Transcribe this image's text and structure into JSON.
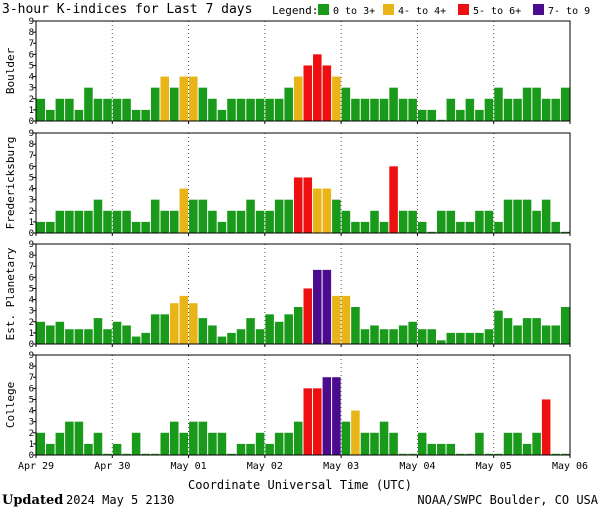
{
  "chart_data": {
    "type": "bar",
    "title": "3-hour K-indices for Last 7 days",
    "legend": {
      "label": "Legend:",
      "placement": "top-right",
      "entries": [
        {
          "text": "0 to 3+",
          "color": "#1a9a1a"
        },
        {
          "text": "4- to 4+",
          "color": "#e9b418"
        },
        {
          "text": "5- to 6+",
          "color": "#ee1010"
        },
        {
          "text": "7- to 9",
          "color": "#4a0b8f"
        }
      ]
    },
    "xlabel": "Coordinate Universal Time (UTC)",
    "x_ticks": [
      "Apr 29",
      "Apr 30",
      "May 01",
      "May 02",
      "May 03",
      "May 04",
      "May 05",
      "May 06"
    ],
    "bins_per_day": 8,
    "ylim": [
      0,
      9
    ],
    "y_ticks": [
      "0",
      "1",
      "2",
      "3",
      "4",
      "5",
      "6",
      "7",
      "8",
      "9"
    ],
    "grid": true,
    "panels": [
      {
        "name": "Boulder",
        "values": [
          2,
          1,
          2,
          2,
          1,
          3,
          2,
          2,
          2,
          2,
          1,
          1,
          3,
          4,
          3,
          4,
          4,
          3,
          2,
          1,
          2,
          2,
          2,
          2,
          2,
          2,
          3,
          4,
          5,
          6,
          5,
          4,
          3,
          2,
          2,
          2,
          2,
          3,
          2,
          2,
          1,
          1,
          0,
          2,
          1,
          2,
          1,
          2,
          3,
          2,
          2,
          3,
          3,
          2,
          2,
          3,
          0
        ]
      },
      {
        "name": "Fredericksburg",
        "values": [
          1,
          1,
          2,
          2,
          2,
          2,
          3,
          2,
          2,
          2,
          1,
          1,
          3,
          2,
          2,
          4,
          3,
          3,
          2,
          1,
          2,
          2,
          3,
          2,
          2,
          3,
          3,
          5,
          5,
          4,
          4,
          3,
          2,
          1,
          1,
          2,
          1,
          6,
          2,
          2,
          1,
          0,
          2,
          2,
          1,
          1,
          2,
          2,
          1,
          3,
          3,
          3,
          2,
          3,
          1,
          0
        ]
      },
      {
        "name": "Est. Planetary",
        "values": [
          2,
          1.67,
          2,
          1.33,
          1.33,
          1.33,
          2.33,
          1.33,
          2,
          1.67,
          0.67,
          1,
          2.67,
          2.67,
          3.67,
          4.33,
          3.67,
          2.33,
          1.67,
          0.67,
          1,
          1.33,
          2.33,
          1.33,
          2.67,
          2,
          2.67,
          3.33,
          5,
          6.67,
          6.67,
          4.33,
          4.33,
          3.33,
          1.33,
          1.67,
          1.33,
          1.33,
          1.67,
          2,
          1.33,
          1.33,
          0.33,
          1,
          1,
          1,
          1,
          1.33,
          3,
          2.33,
          1.67,
          2.33,
          2.33,
          1.67,
          1.67,
          3.33
        ]
      },
      {
        "name": "College",
        "values": [
          2,
          1,
          2,
          3,
          3,
          1,
          2,
          0,
          1,
          0,
          2,
          0,
          0,
          2,
          3,
          2,
          3,
          3,
          2,
          2,
          0,
          1,
          1,
          2,
          1,
          2,
          2,
          3,
          6,
          6,
          7,
          7,
          3,
          4,
          2,
          2,
          3,
          2,
          0,
          0,
          2,
          1,
          1,
          1,
          0,
          0,
          2,
          0,
          0,
          2,
          2,
          1,
          2,
          5,
          0,
          0,
          2,
          0
        ]
      }
    ]
  },
  "footer": {
    "updated_label": "Updated",
    "updated_time": "2024 May  5 2130",
    "credit": "NOAA/SWPC Boulder, CO USA"
  }
}
